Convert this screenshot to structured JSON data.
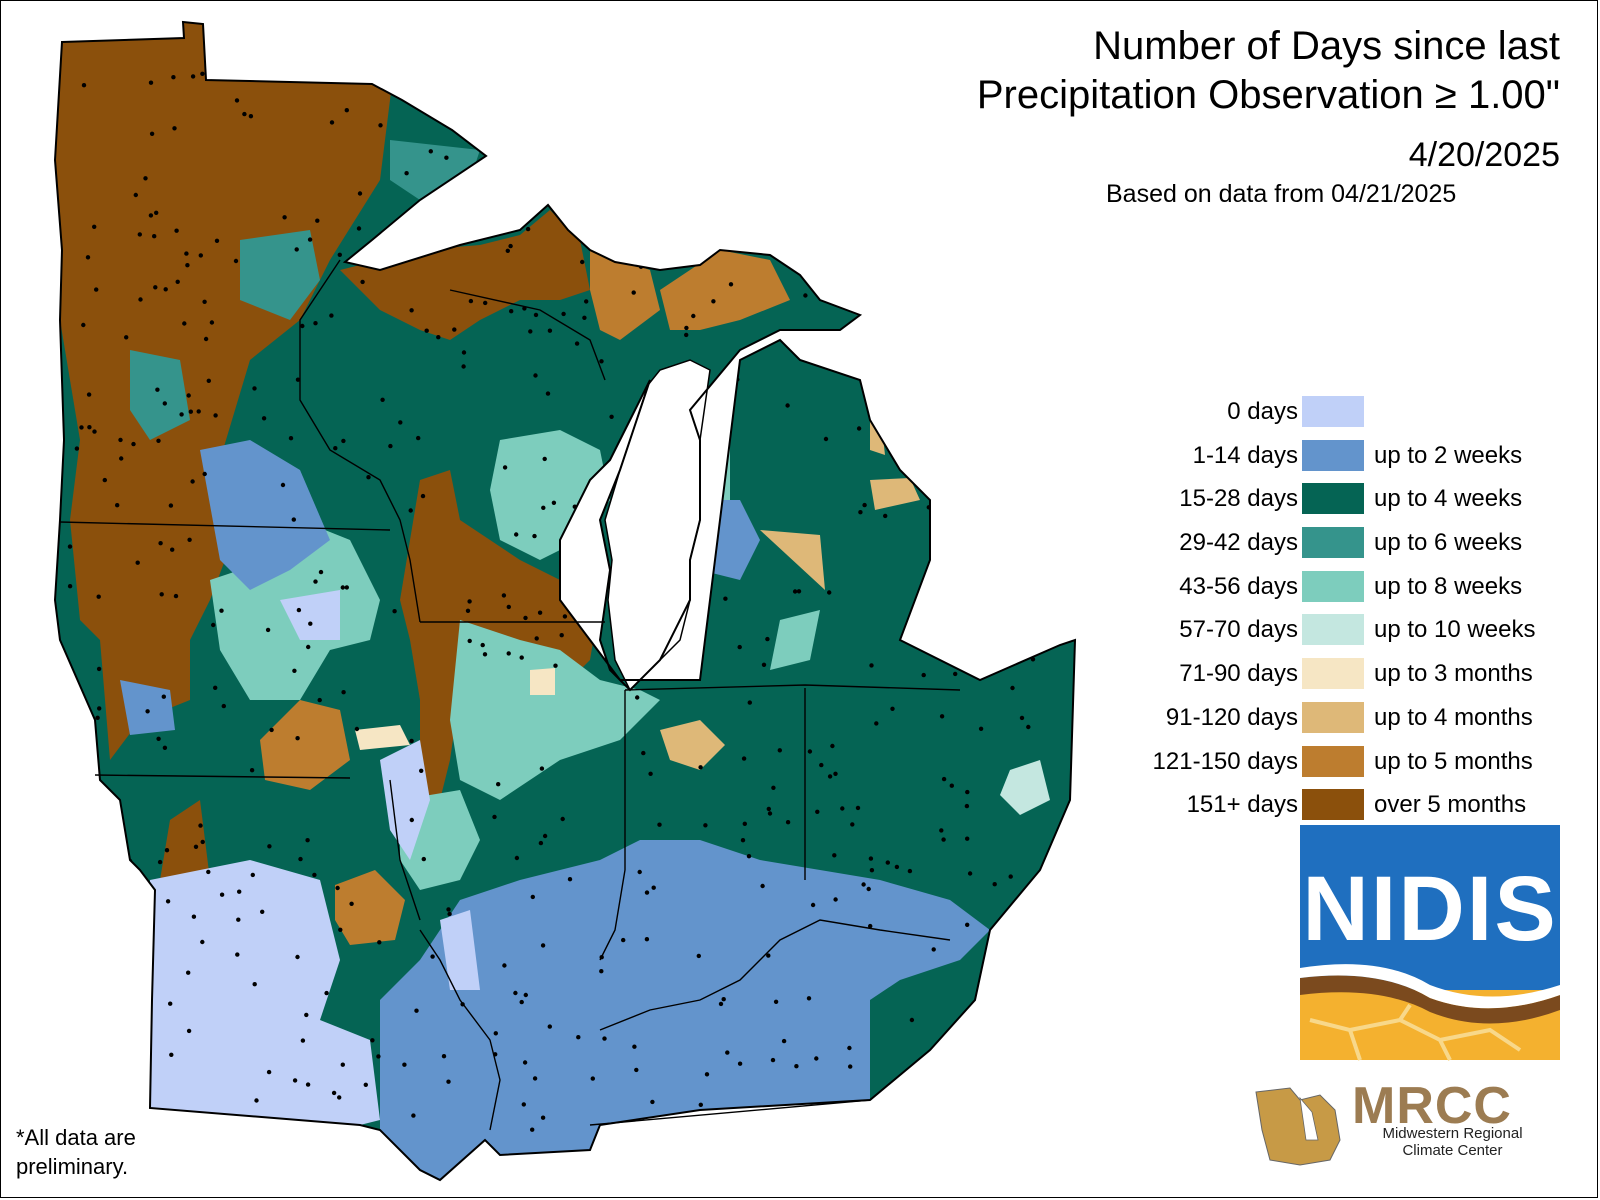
{
  "title": {
    "line1": "Number of Days since last",
    "line2": "Precipitation Observation ≥ 1.00\"",
    "date": "4/20/2025",
    "based_on": "Based on data from 04/21/2025"
  },
  "legend": [
    {
      "days": "0 days",
      "label": "",
      "color": "#c0d0f8"
    },
    {
      "days": "1-14 days",
      "label": "up to 2 weeks",
      "color": "#6394cc"
    },
    {
      "days": "15-28 days",
      "label": "up to 4 weeks",
      "color": "#056454"
    },
    {
      "days": "29-42 days",
      "label": "up to 6 weeks",
      "color": "#35948c"
    },
    {
      "days": "43-56 days",
      "label": "up to 8 weeks",
      "color": "#7dcdbd"
    },
    {
      "days": "57-70 days",
      "label": "up to 10 weeks",
      "color": "#c4e7e0"
    },
    {
      "days": "71-90 days",
      "label": "up to 3 months",
      "color": "#f6e6c4"
    },
    {
      "days": "91-120 days",
      "label": "up to 4 months",
      "color": "#deb878"
    },
    {
      "days": "121-150 days",
      "label": "up to 5 months",
      "color": "#bd7d2f"
    },
    {
      "days": "151+ days",
      "label": "over 5 months",
      "color": "#8b500c"
    }
  ],
  "logos": {
    "nidis": "NIDIS",
    "mrcc": "MRCC",
    "mrcc_name": "Midwestern Regional Climate Center"
  },
  "footnote": {
    "line1": "*All data are",
    "line2": "preliminary."
  }
}
